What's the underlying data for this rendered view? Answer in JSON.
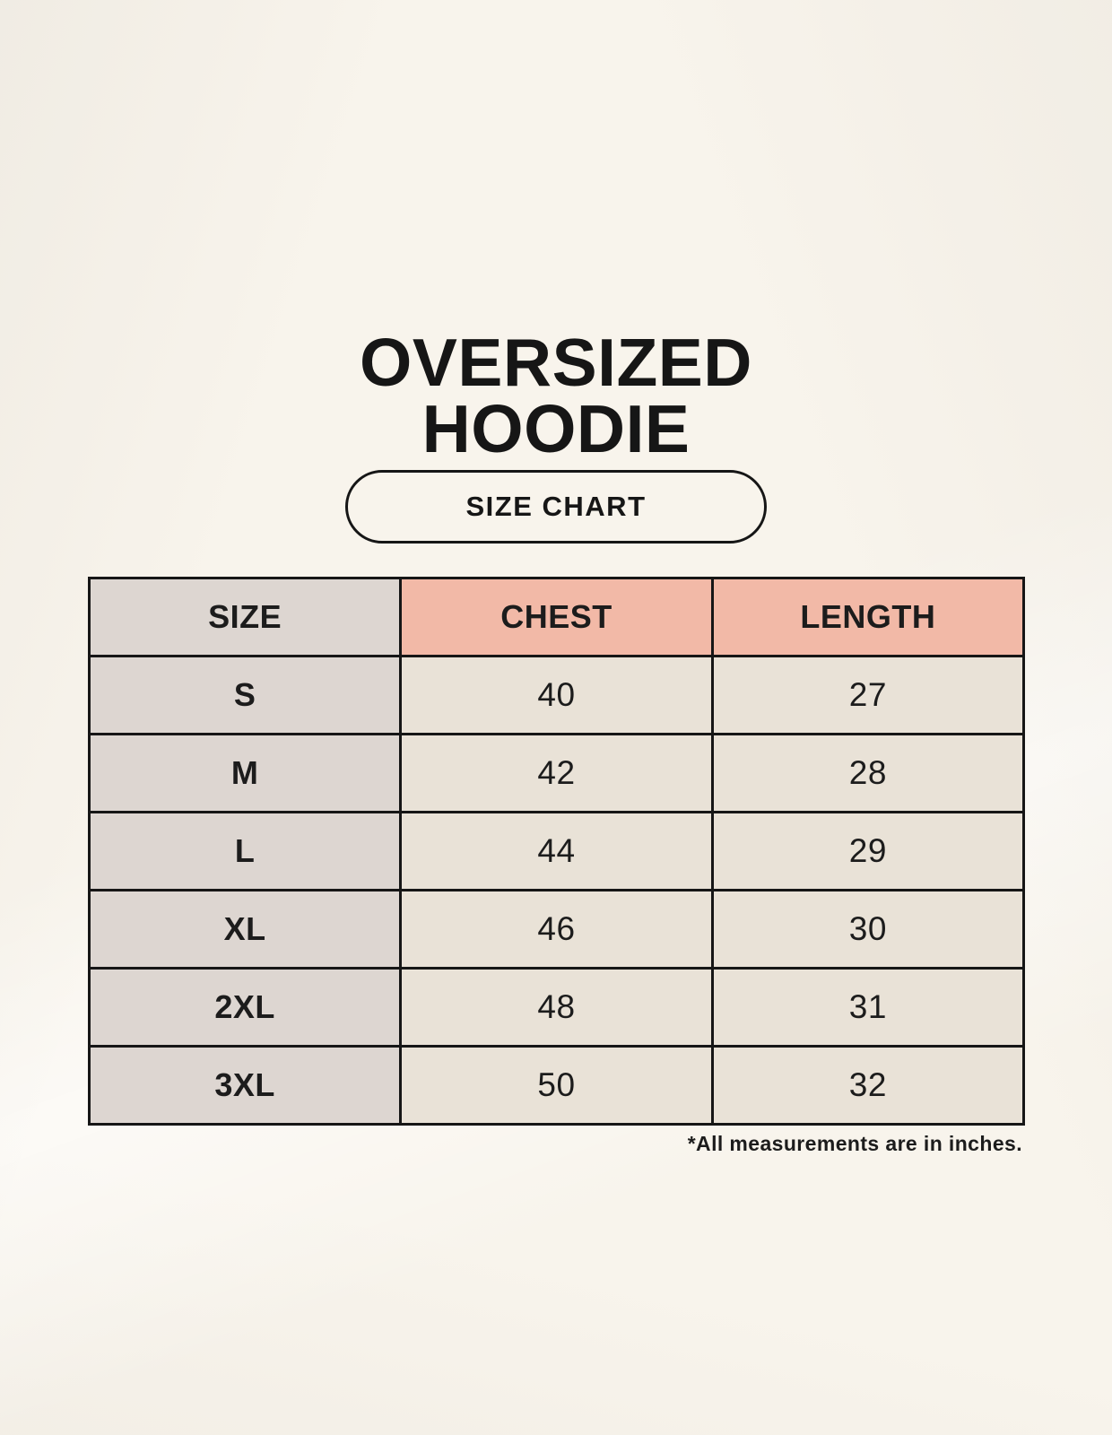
{
  "page": {
    "title_lines": [
      "OVERSIZED",
      "HOODIE"
    ],
    "badge_label": "SIZE CHART",
    "note": "*All measurements are in inches."
  },
  "table": {
    "headers": [
      "SIZE",
      "CHEST",
      "LENGTH"
    ],
    "rows": [
      {
        "size": "S",
        "chest": "40",
        "length": "27"
      },
      {
        "size": "M",
        "chest": "42",
        "length": "28"
      },
      {
        "size": "L",
        "chest": "44",
        "length": "29"
      },
      {
        "size": "XL",
        "chest": "46",
        "length": "30"
      },
      {
        "size": "2XL",
        "chest": "48",
        "length": "31"
      },
      {
        "size": "3XL",
        "chest": "50",
        "length": "32"
      }
    ]
  },
  "colors": {
    "background": "#f8f4ec",
    "cell_gray": "#ddd6d1",
    "cell_salmon": "#f2b9a7",
    "cell_cream": "#e9e2d7",
    "border": "#161616",
    "text": "#1c1c1c"
  },
  "chart_data": {
    "type": "table",
    "title": "OVERSIZED HOODIE — SIZE CHART",
    "columns": [
      "SIZE",
      "CHEST",
      "LENGTH"
    ],
    "categories": [
      "S",
      "M",
      "L",
      "XL",
      "2XL",
      "3XL"
    ],
    "series": [
      {
        "name": "CHEST",
        "values": [
          40,
          42,
          44,
          46,
          48,
          50
        ]
      },
      {
        "name": "LENGTH",
        "values": [
          27,
          28,
          29,
          30,
          31,
          32
        ]
      }
    ],
    "units": "inches"
  }
}
